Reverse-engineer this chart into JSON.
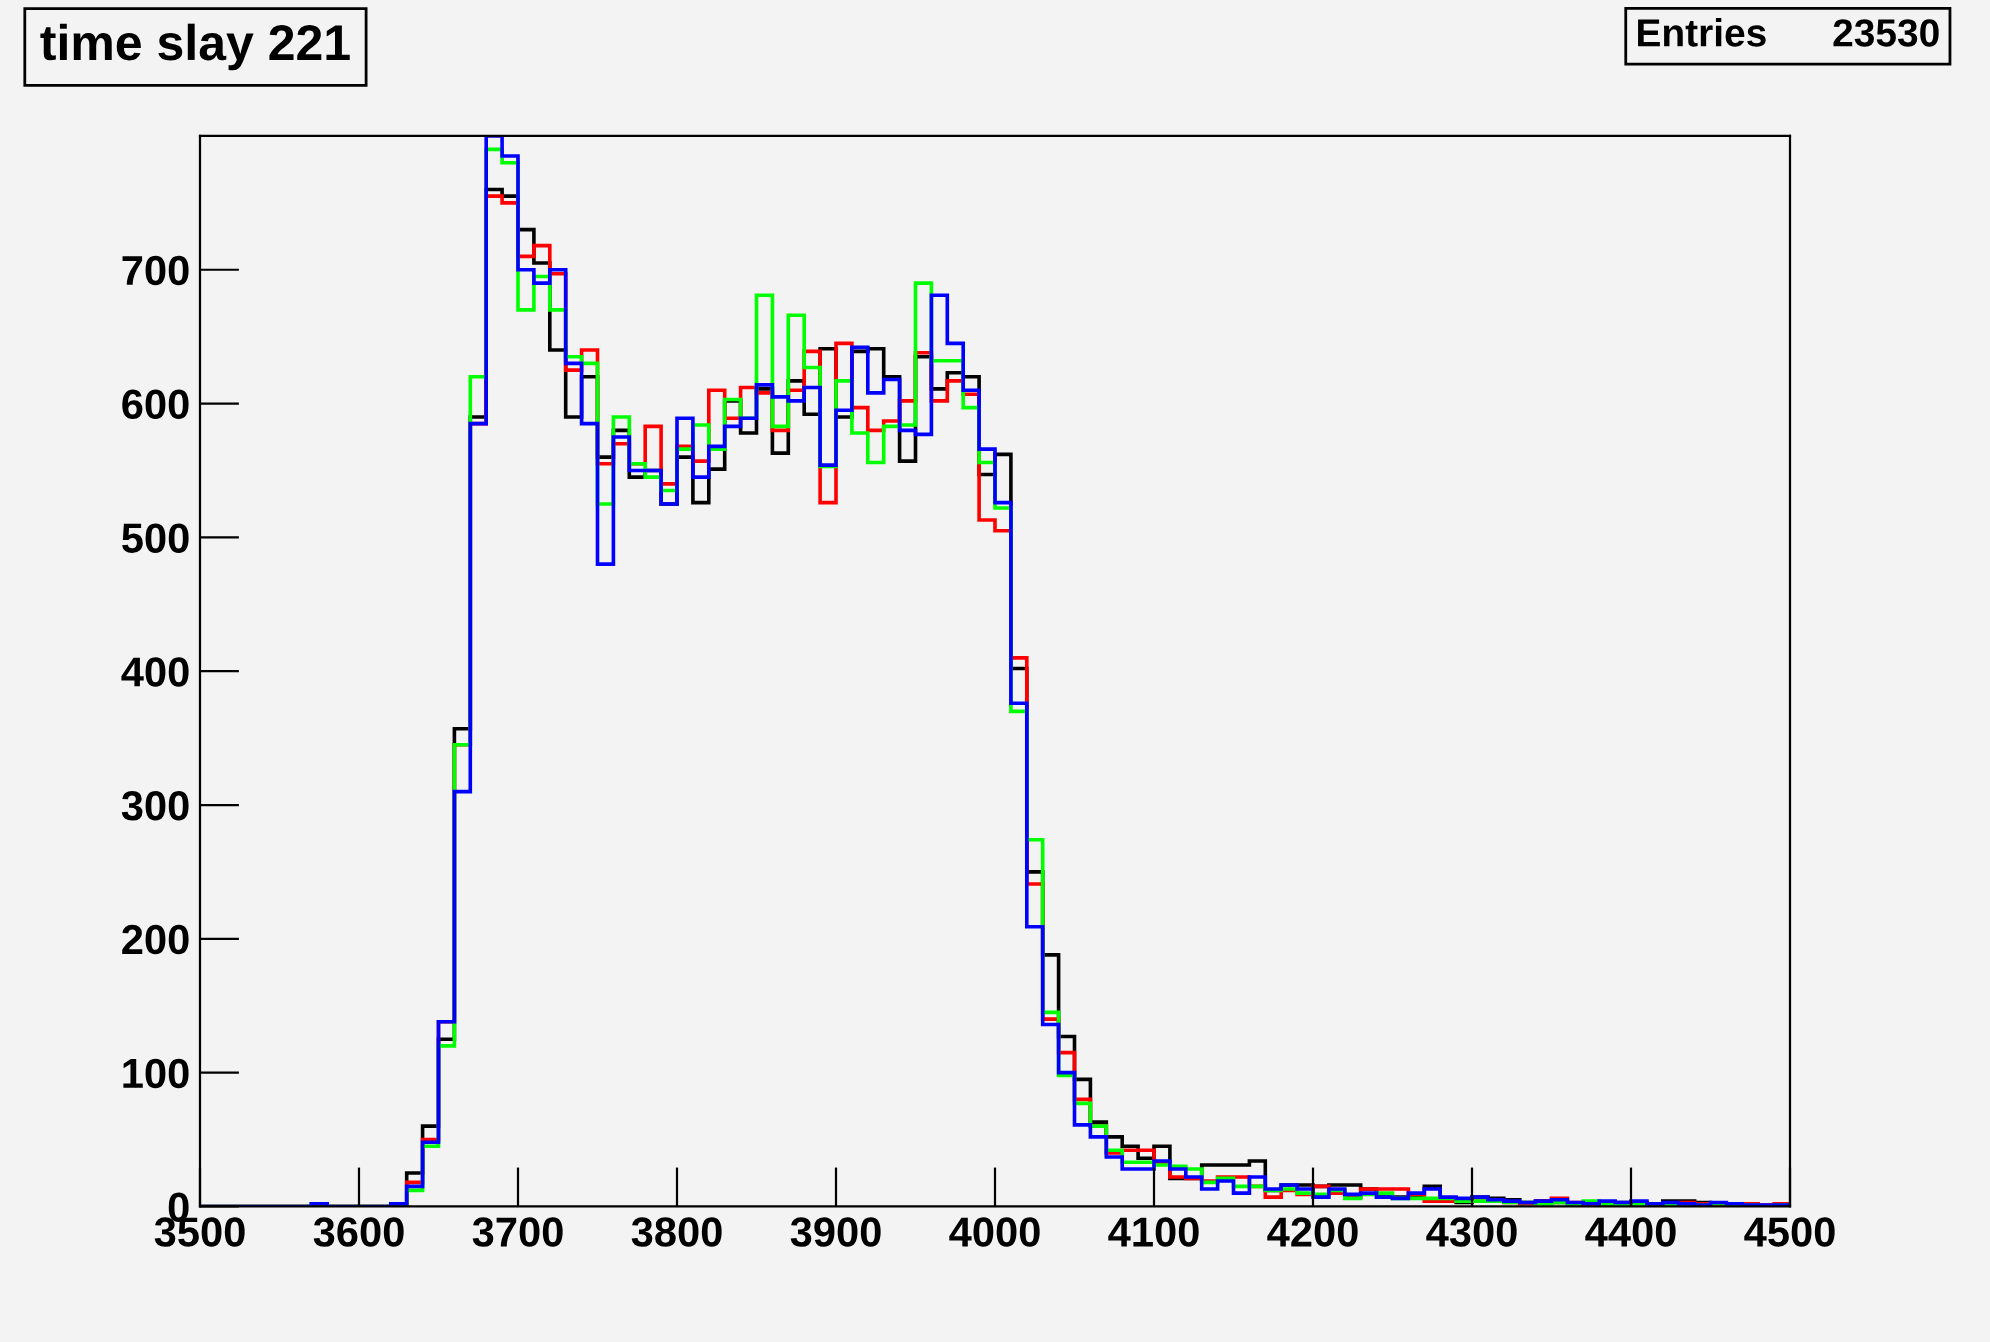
{
  "chart_data": {
    "type": "histogram",
    "title": "time slay 221",
    "annotations": [
      "Entries      23530"
    ],
    "bins": [
      3500,
      3510,
      3520,
      3530,
      3540,
      3550,
      3560,
      3570,
      3580,
      3590,
      3600,
      3610,
      3620,
      3630,
      3640,
      3650,
      3660,
      3670,
      3680,
      3690,
      3700,
      3710,
      3720,
      3730,
      3740,
      3750,
      3760,
      3770,
      3780,
      3790,
      3800,
      3810,
      3820,
      3830,
      3840,
      3850,
      3860,
      3870,
      3880,
      3890,
      3900,
      3910,
      3920,
      3930,
      3940,
      3950,
      3960,
      3970,
      3980,
      3990,
      4000,
      4010,
      4020,
      4030,
      4040,
      4050,
      4060,
      4070,
      4080,
      4090,
      4100,
      4110,
      4120,
      4130,
      4140,
      4150,
      4160,
      4170,
      4180,
      4190,
      4200,
      4210,
      4220,
      4230,
      4240,
      4250,
      4260,
      4270,
      4280,
      4290,
      4300,
      4310,
      4320,
      4330,
      4340,
      4350,
      4360,
      4370,
      4380,
      4390,
      4400,
      4410,
      4420,
      4430,
      4440,
      4450,
      4460,
      4470,
      4480,
      4490,
      4500
    ],
    "series": [
      {
        "color": "#000000",
        "values": [
          0,
          0,
          0,
          0,
          0,
          0,
          0,
          0,
          0,
          0,
          0,
          0,
          2,
          25,
          60,
          125,
          357,
          590,
          760,
          755,
          730,
          705,
          640,
          590,
          620,
          560,
          580,
          545,
          550,
          525,
          560,
          526,
          551,
          602,
          578,
          611,
          563,
          617,
          592,
          641,
          590,
          639,
          641,
          620,
          557,
          635,
          611,
          623,
          620,
          547,
          562,
          402,
          250,
          188,
          127,
          95,
          63,
          52,
          45,
          36,
          45,
          21,
          21,
          31,
          31,
          31,
          34,
          12,
          16,
          16,
          15,
          16,
          16,
          13,
          7,
          7,
          7,
          15,
          4,
          3,
          7,
          6,
          5,
          3,
          4,
          3,
          2,
          3,
          2,
          3,
          3,
          2,
          4,
          4,
          3,
          2,
          1,
          1,
          0,
          0
        ]
      },
      {
        "color": "#ff0000",
        "values": [
          0,
          0,
          0,
          0,
          0,
          0,
          0,
          0,
          0,
          0,
          0,
          0,
          2,
          18,
          50,
          138,
          345,
          585,
          755,
          750,
          710,
          718,
          697,
          625,
          640,
          555,
          570,
          555,
          583,
          540,
          568,
          557,
          610,
          589,
          612,
          608,
          580,
          610,
          639,
          526,
          645,
          597,
          580,
          587,
          602,
          638,
          602,
          617,
          607,
          513,
          505,
          410,
          241,
          140,
          115,
          80,
          60,
          40,
          42,
          42,
          33,
          22,
          21,
          19,
          22,
          22,
          15,
          7,
          12,
          9,
          15,
          10,
          7,
          13,
          13,
          13,
          9,
          4,
          4,
          4,
          4,
          5,
          3,
          2,
          4,
          6,
          3,
          2,
          3,
          2,
          3,
          1,
          2,
          3,
          2,
          1,
          1,
          2,
          1,
          2
        ]
      },
      {
        "color": "#00ff00",
        "values": [
          0,
          0,
          0,
          0,
          0,
          0,
          0,
          2,
          0,
          0,
          0,
          0,
          2,
          12,
          45,
          120,
          345,
          620,
          790,
          780,
          670,
          695,
          670,
          635,
          630,
          525,
          590,
          555,
          545,
          535,
          566,
          584,
          566,
          603,
          589,
          681,
          583,
          666,
          627,
          553,
          617,
          578,
          556,
          583,
          584,
          690,
          632,
          632,
          597,
          556,
          522,
          370,
          274,
          145,
          98,
          77,
          60,
          42,
          33,
          33,
          31,
          30,
          28,
          18,
          21,
          15,
          15,
          12,
          13,
          10,
          9,
          12,
          6,
          9,
          10,
          6,
          6,
          6,
          6,
          4,
          4,
          4,
          3,
          3,
          2,
          3,
          2,
          4,
          2,
          1,
          2,
          2,
          1,
          2,
          1,
          2,
          1,
          1,
          0,
          1
        ]
      },
      {
        "color": "#0000ff",
        "values": [
          0,
          0,
          0,
          0,
          0,
          0,
          0,
          2,
          0,
          0,
          0,
          0,
          2,
          15,
          48,
          138,
          310,
          585,
          800,
          785,
          700,
          690,
          700,
          630,
          585,
          480,
          575,
          550,
          550,
          525,
          589,
          545,
          568,
          583,
          589,
          614,
          605,
          602,
          612,
          554,
          595,
          642,
          608,
          618,
          580,
          577,
          681,
          645,
          610,
          566,
          526,
          376,
          209,
          136,
          100,
          61,
          52,
          37,
          28,
          28,
          34,
          28,
          22,
          13,
          19,
          10,
          22,
          13,
          16,
          13,
          7,
          13,
          9,
          10,
          7,
          6,
          10,
          13,
          7,
          6,
          7,
          5,
          4,
          3,
          4,
          5,
          3,
          2,
          4,
          3,
          4,
          2,
          3,
          2,
          1,
          3,
          2,
          1,
          1,
          1
        ]
      }
    ],
    "xlim": [
      3500,
      4500
    ],
    "xticks": [
      3500,
      3600,
      3700,
      3800,
      3900,
      4000,
      4100,
      4200,
      4300,
      4400,
      4500
    ],
    "ylim": [
      0,
      800
    ],
    "yticks": [
      0,
      100,
      200,
      300,
      400,
      500,
      600,
      700
    ],
    "grid": false,
    "legend": false
  }
}
